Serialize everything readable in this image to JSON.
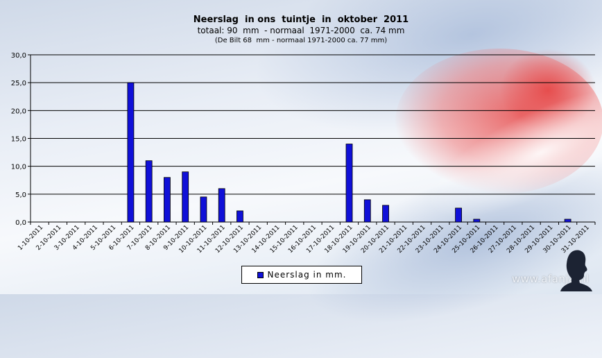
{
  "chart_data": {
    "type": "bar",
    "title": "Neerslag  in ons  tuintje  in  oktober  2011",
    "subtitle": "totaal: 90  mm  - normaal  1971-2000  ca. 74 mm",
    "subtitle2": "(De Bilt 68  mm - normaal 1971-2000 ca. 77 mm)",
    "ylim": [
      0,
      30
    ],
    "yticks": [
      "0,0",
      "5,0",
      "10,0",
      "15,0",
      "20,0",
      "25,0",
      "30,0"
    ],
    "ytick_values": [
      0,
      5,
      10,
      15,
      20,
      25,
      30
    ],
    "grid": true,
    "legend_position": "bottom-center",
    "categories": [
      "1-10-2011",
      "2-10-2011",
      "3-10-2011",
      "4-10-2011",
      "5-10-2011",
      "6-10-2011",
      "7-10-2011",
      "8-10-2011",
      "9-10-2011",
      "10-10-2011",
      "11-10-2011",
      "12-10-2011",
      "13-10-2011",
      "14-10-2011",
      "15-10-2011",
      "16-10-2011",
      "17-10-2011",
      "18-10-2011",
      "19-10-2011",
      "20-10-2011",
      "21-10-2011",
      "22-10-2011",
      "23-10-2011",
      "24-10-2011",
      "25-10-2011",
      "26-10-2011",
      "27-10-2011",
      "28-10-2011",
      "29-10-2011",
      "30-10-2011",
      "31-10-2011"
    ],
    "series": [
      {
        "name": "Neerslag in mm.",
        "color": "#1010d8",
        "values": [
          0,
          0,
          0,
          0,
          0,
          25,
          11,
          8,
          9,
          4.5,
          6,
          2,
          0,
          0,
          0,
          0,
          0,
          14,
          4,
          3,
          0,
          0,
          0,
          2.5,
          0.5,
          0,
          0,
          0,
          0,
          0.5,
          0
        ]
      }
    ]
  },
  "legend": {
    "label": "Neerslag in mm."
  },
  "watermark": {
    "text": "www.afanja.nl",
    "icon": "silhouette-portrait-icon"
  }
}
